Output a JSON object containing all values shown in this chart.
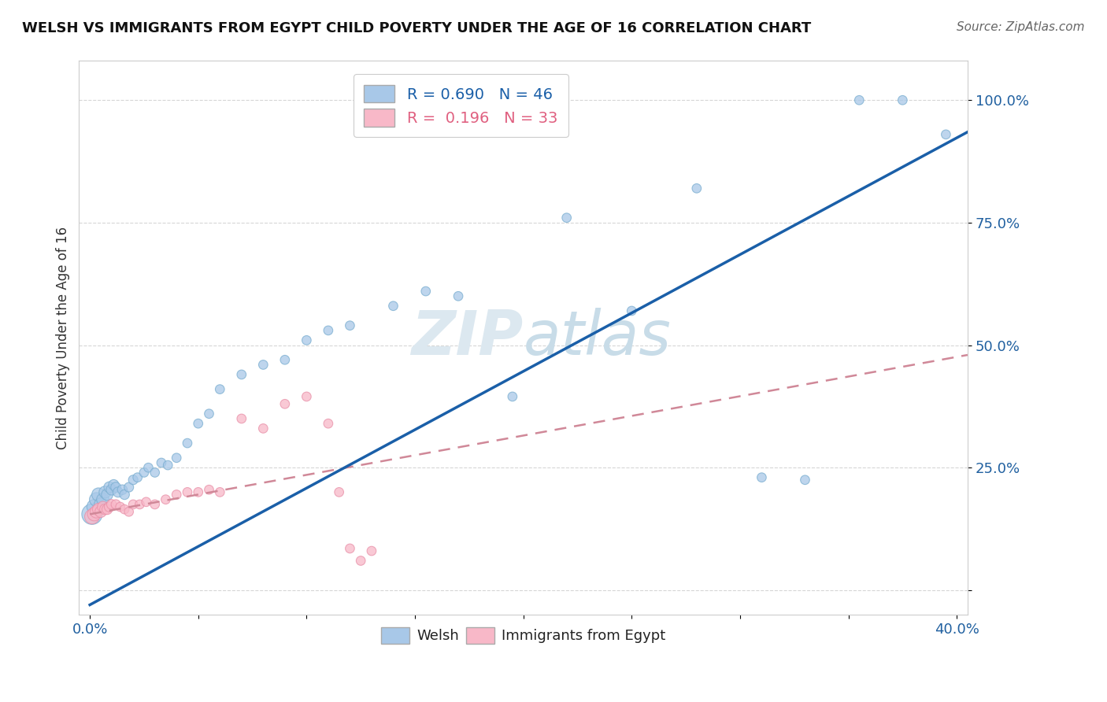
{
  "title": "WELSH VS IMMIGRANTS FROM EGYPT CHILD POVERTY UNDER THE AGE OF 16 CORRELATION CHART",
  "source": "Source: ZipAtlas.com",
  "ylabel": "Child Poverty Under the Age of 16",
  "xlabel": "",
  "xlim": [
    -0.005,
    0.405
  ],
  "ylim": [
    -0.05,
    1.08
  ],
  "welsh_R": 0.69,
  "welsh_N": 46,
  "egypt_R": 0.196,
  "egypt_N": 33,
  "blue_color": "#a8c8e8",
  "blue_edge_color": "#7aaed0",
  "blue_line_color": "#1a5fa8",
  "pink_color": "#f8b8c8",
  "pink_edge_color": "#e890a8",
  "pink_line_color": "#e06080",
  "pink_dash_color": "#d08898",
  "watermark_color": "#dce8f0",
  "welsh_x": [
    0.001,
    0.002,
    0.003,
    0.004,
    0.005,
    0.006,
    0.007,
    0.008,
    0.009,
    0.01,
    0.011,
    0.012,
    0.013,
    0.015,
    0.016,
    0.018,
    0.02,
    0.022,
    0.025,
    0.027,
    0.03,
    0.033,
    0.036,
    0.04,
    0.045,
    0.05,
    0.055,
    0.06,
    0.07,
    0.08,
    0.09,
    0.1,
    0.11,
    0.12,
    0.14,
    0.155,
    0.17,
    0.195,
    0.22,
    0.25,
    0.28,
    0.31,
    0.33,
    0.355,
    0.375,
    0.395
  ],
  "welsh_y": [
    0.155,
    0.17,
    0.185,
    0.195,
    0.175,
    0.185,
    0.2,
    0.195,
    0.21,
    0.205,
    0.215,
    0.21,
    0.2,
    0.205,
    0.195,
    0.21,
    0.225,
    0.23,
    0.24,
    0.25,
    0.24,
    0.26,
    0.255,
    0.27,
    0.3,
    0.34,
    0.36,
    0.41,
    0.44,
    0.46,
    0.47,
    0.51,
    0.53,
    0.54,
    0.58,
    0.61,
    0.6,
    0.395,
    0.76,
    0.57,
    0.82,
    0.23,
    0.225,
    1.0,
    1.0,
    0.93
  ],
  "welsh_sizes": [
    350,
    180,
    160,
    150,
    140,
    130,
    120,
    110,
    100,
    95,
    90,
    85,
    85,
    80,
    80,
    75,
    75,
    70,
    70,
    70,
    70,
    70,
    70,
    70,
    70,
    70,
    70,
    70,
    70,
    70,
    70,
    70,
    70,
    70,
    70,
    70,
    70,
    70,
    70,
    70,
    70,
    70,
    70,
    70,
    70,
    70
  ],
  "egypt_x": [
    0.001,
    0.002,
    0.003,
    0.004,
    0.005,
    0.006,
    0.007,
    0.008,
    0.009,
    0.01,
    0.012,
    0.014,
    0.016,
    0.018,
    0.02,
    0.023,
    0.026,
    0.03,
    0.035,
    0.04,
    0.045,
    0.05,
    0.055,
    0.06,
    0.07,
    0.08,
    0.09,
    0.1,
    0.11,
    0.115,
    0.12,
    0.125,
    0.13
  ],
  "egypt_y": [
    0.15,
    0.155,
    0.16,
    0.165,
    0.16,
    0.17,
    0.165,
    0.165,
    0.17,
    0.175,
    0.175,
    0.17,
    0.165,
    0.16,
    0.175,
    0.175,
    0.18,
    0.175,
    0.185,
    0.195,
    0.2,
    0.2,
    0.205,
    0.2,
    0.35,
    0.33,
    0.38,
    0.395,
    0.34,
    0.2,
    0.085,
    0.06,
    0.08
  ],
  "egypt_sizes": [
    180,
    150,
    130,
    120,
    110,
    100,
    95,
    90,
    85,
    80,
    75,
    70,
    70,
    70,
    70,
    70,
    70,
    70,
    70,
    70,
    70,
    70,
    70,
    70,
    70,
    70,
    70,
    70,
    70,
    70,
    70,
    70,
    70
  ],
  "blue_line_x0": 0.0,
  "blue_line_y0": -0.03,
  "blue_line_x1": 0.405,
  "blue_line_y1": 0.935,
  "pink_line_x0": 0.0,
  "pink_line_y0": 0.155,
  "pink_line_x1": 0.405,
  "pink_line_y1": 0.48
}
